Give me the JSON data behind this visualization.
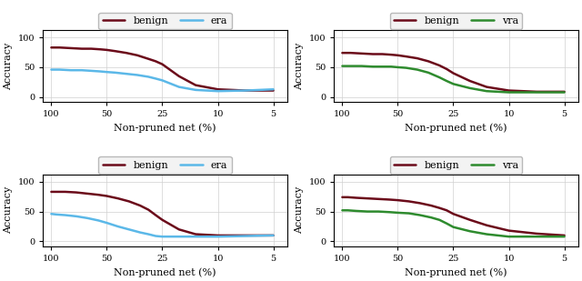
{
  "x_ticks": [
    100,
    50,
    25,
    10,
    5
  ],
  "x_positions": [
    0,
    1,
    2,
    3,
    4
  ],
  "x_label": "Non-pruned net (%)",
  "y_label": "Accuracy",
  "y_lim": [
    -8,
    112
  ],
  "y_ticks": [
    0,
    50,
    100
  ],
  "color_benign": "#6b0b1a",
  "color_era": "#5bb8e8",
  "color_vra": "#2e8b2e",
  "line_width": 1.8,
  "plots": [
    {
      "other_label": "era",
      "benign_xp": [
        0.0,
        0.15,
        0.35,
        0.55,
        0.72,
        0.88,
        1.0,
        1.15,
        1.35,
        1.55,
        1.75,
        1.88,
        2.0,
        2.3,
        2.6,
        3.0,
        3.5,
        4.0
      ],
      "benign_y": [
        83,
        83,
        82,
        81,
        81,
        80,
        79,
        77,
        74,
        70,
        64,
        60,
        55,
        35,
        20,
        13,
        11,
        11
      ],
      "other_xp": [
        0.0,
        0.15,
        0.35,
        0.55,
        0.72,
        0.88,
        1.0,
        1.15,
        1.35,
        1.55,
        1.75,
        1.88,
        2.0,
        2.3,
        2.6,
        3.0,
        3.5,
        4.0
      ],
      "other_y": [
        46,
        46,
        45,
        45,
        44,
        43,
        42,
        41,
        39,
        37,
        34,
        31,
        28,
        17,
        12,
        10,
        11,
        13
      ]
    },
    {
      "other_label": "vra",
      "benign_xp": [
        0.0,
        0.15,
        0.35,
        0.55,
        0.72,
        0.88,
        1.0,
        1.15,
        1.35,
        1.55,
        1.75,
        1.88,
        2.0,
        2.3,
        2.6,
        3.0,
        3.5,
        4.0
      ],
      "benign_y": [
        74,
        74,
        73,
        72,
        72,
        71,
        70,
        68,
        65,
        60,
        53,
        47,
        40,
        27,
        17,
        11,
        9,
        9
      ],
      "other_xp": [
        0.0,
        0.15,
        0.35,
        0.55,
        0.72,
        0.88,
        1.0,
        1.15,
        1.35,
        1.55,
        1.75,
        1.88,
        2.0,
        2.3,
        2.6,
        3.0,
        3.5,
        4.0
      ],
      "other_y": [
        52,
        52,
        52,
        51,
        51,
        51,
        50,
        49,
        46,
        41,
        33,
        27,
        22,
        15,
        10,
        8,
        8,
        8
      ]
    },
    {
      "other_label": "era",
      "benign_xp": [
        0.0,
        0.1,
        0.25,
        0.45,
        0.65,
        0.85,
        1.0,
        1.2,
        1.4,
        1.6,
        1.75,
        1.88,
        2.0,
        2.3,
        2.6,
        3.0,
        3.5,
        4.0
      ],
      "benign_y": [
        83,
        83,
        83,
        82,
        80,
        78,
        76,
        72,
        67,
        60,
        53,
        44,
        36,
        20,
        12,
        10,
        10,
        10
      ],
      "other_xp": [
        0.0,
        0.1,
        0.25,
        0.45,
        0.65,
        0.85,
        1.0,
        1.2,
        1.4,
        1.6,
        1.75,
        1.88,
        2.0,
        2.3,
        2.6,
        3.0,
        3.5,
        4.0
      ],
      "other_y": [
        46,
        45,
        44,
        42,
        39,
        35,
        31,
        25,
        20,
        15,
        12,
        9,
        8,
        8,
        8,
        8,
        9,
        10
      ]
    },
    {
      "other_label": "vra",
      "benign_xp": [
        0.0,
        0.1,
        0.25,
        0.45,
        0.65,
        0.85,
        1.0,
        1.2,
        1.4,
        1.6,
        1.75,
        1.88,
        2.0,
        2.3,
        2.6,
        3.0,
        3.5,
        4.0
      ],
      "benign_y": [
        74,
        74,
        73,
        72,
        71,
        70,
        69,
        67,
        64,
        60,
        56,
        52,
        46,
        36,
        27,
        18,
        13,
        10
      ],
      "other_xp": [
        0.0,
        0.1,
        0.25,
        0.45,
        0.65,
        0.85,
        1.0,
        1.2,
        1.4,
        1.6,
        1.75,
        1.88,
        2.0,
        2.3,
        2.6,
        3.0,
        3.5,
        4.0
      ],
      "other_y": [
        52,
        52,
        51,
        50,
        50,
        49,
        48,
        47,
        44,
        40,
        36,
        30,
        24,
        17,
        12,
        8,
        8,
        8
      ]
    }
  ]
}
